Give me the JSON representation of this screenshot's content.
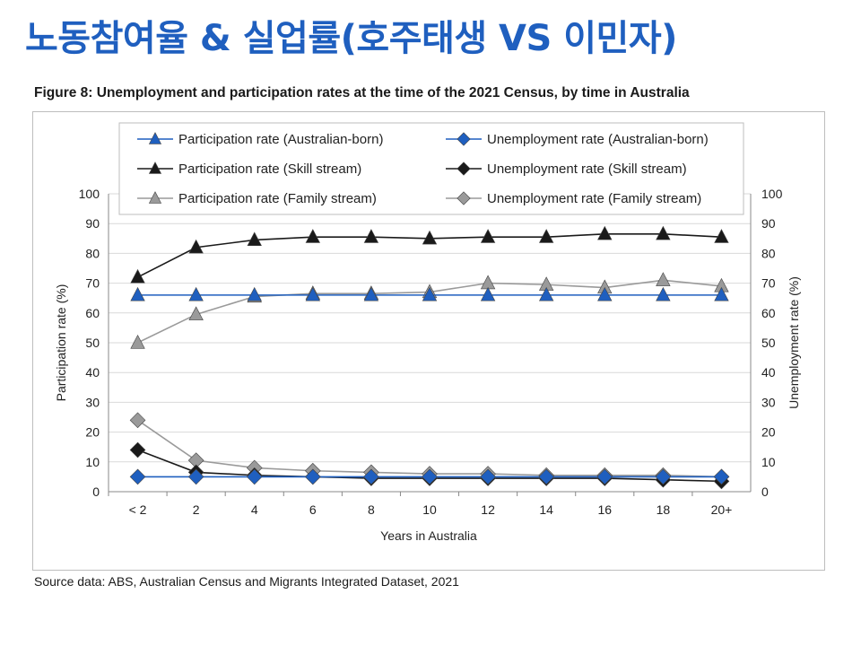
{
  "slide": {
    "title": "노동참여율 & 실업률(호주태생 VS 이민자)"
  },
  "figure": {
    "caption": "Figure 8: Unemployment and participation rates at the time of the 2021 Census, by time in Australia",
    "source": "Source data: ABS, Australian Census and Migrants Integrated Dataset, 2021"
  },
  "colors": {
    "australian_born": "#1f5fbf",
    "skill_stream": "#1a1a1a",
    "family_stream": "#9a9a9a",
    "grid": "#d9d9d9",
    "title": "#1f5fbf"
  },
  "chart_data": {
    "type": "line",
    "xlabel": "Years in Australia",
    "ylabel_left": "Participation rate (%)",
    "ylabel_right": "Unemployment rate (%)",
    "ylim": [
      0,
      100
    ],
    "yticks": [
      0,
      10,
      20,
      30,
      40,
      50,
      60,
      70,
      80,
      90,
      100
    ],
    "grid": true,
    "categories": [
      "< 2",
      "2",
      "4",
      "6",
      "8",
      "10",
      "12",
      "14",
      "16",
      "18",
      "20+"
    ],
    "legend_position": "top",
    "series": [
      {
        "name": "Participation rate (Australian-born)",
        "color": "#1f5fbf",
        "marker": "triangle",
        "axis": "left",
        "values": [
          66,
          66,
          66,
          66,
          66,
          66,
          66,
          66,
          66,
          66,
          66
        ]
      },
      {
        "name": "Unemployment rate (Australian-born)",
        "color": "#1f5fbf",
        "marker": "diamond",
        "axis": "right",
        "values": [
          5,
          5,
          5,
          5,
          5,
          5,
          5,
          5,
          5,
          5,
          5
        ]
      },
      {
        "name": "Participation rate (Skill stream)",
        "color": "#1a1a1a",
        "marker": "triangle",
        "axis": "left",
        "values": [
          72,
          82,
          84.5,
          85.5,
          85.5,
          85,
          85.5,
          85.5,
          86.5,
          86.5,
          85.5
        ]
      },
      {
        "name": "Unemployment rate (Skill stream)",
        "color": "#1a1a1a",
        "marker": "diamond",
        "axis": "right",
        "values": [
          14,
          6.5,
          5.5,
          5,
          4.5,
          4.5,
          4.5,
          4.5,
          4.5,
          4,
          3.5
        ]
      },
      {
        "name": "Participation rate (Family stream)",
        "color": "#9a9a9a",
        "marker": "triangle",
        "axis": "left",
        "values": [
          50,
          59.5,
          65.5,
          66.5,
          66.5,
          67,
          70,
          69.5,
          68.5,
          71,
          69
        ]
      },
      {
        "name": "Unemployment rate (Family stream)",
        "color": "#9a9a9a",
        "marker": "diamond",
        "axis": "right",
        "values": [
          24,
          10.5,
          8,
          7,
          6.5,
          6,
          6,
          5.5,
          5.5,
          5.5,
          5
        ]
      }
    ]
  }
}
